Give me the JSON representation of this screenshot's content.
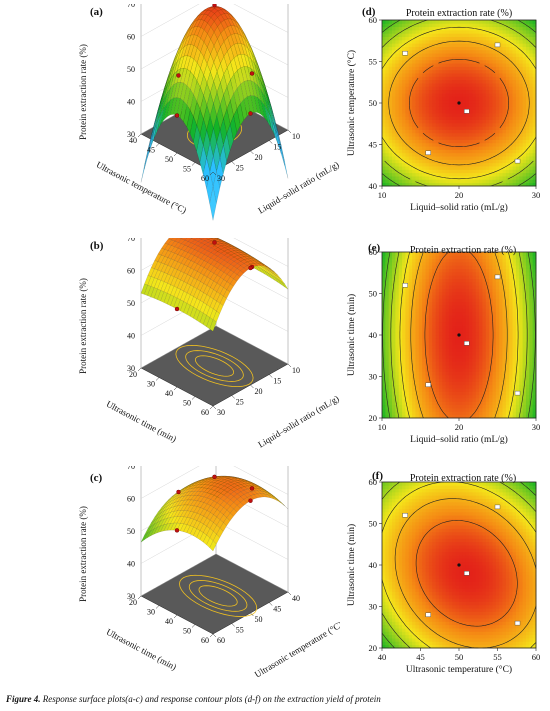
{
  "caption": {
    "figure_label": "Figure 4.",
    "text": "Response surface plots(a-c) and response contour plots (d-f) on the extraction yield of protein"
  },
  "colors": {
    "high": "#e32219",
    "mid": "#f5e61a",
    "low": "#12b324",
    "base": "#595959"
  },
  "chart_data": [
    {
      "id": "a",
      "type": "surface3d",
      "label": "(a)",
      "zlabel": "Protein extraction rate (%)",
      "zticks": [
        "30",
        "40",
        "50",
        "60",
        "70"
      ],
      "xlabel": "Liquid–solid ratio (mL/g)",
      "xticks": [
        "10",
        "15",
        "20",
        "25",
        "30"
      ],
      "ylabel": "Ultrasonic temperature (°C)",
      "yticks": [
        "40",
        "45",
        "50",
        "55",
        "60"
      ]
    },
    {
      "id": "b",
      "type": "surface3d",
      "label": "(b)",
      "zlabel": "Protein extraction rate (%)",
      "zticks": [
        "30",
        "40",
        "50",
        "60",
        "70"
      ],
      "xlabel": "Liquid–solid ratio (mL/g)",
      "xticks": [
        "10",
        "15",
        "20",
        "25",
        "30"
      ],
      "ylabel": "Ultrasonic time (min)",
      "yticks": [
        "20",
        "30",
        "40",
        "50",
        "60"
      ]
    },
    {
      "id": "c",
      "type": "surface3d",
      "label": "(c)",
      "zlabel": "Protein extraction rate (%)",
      "zticks": [
        "30",
        "40",
        "50",
        "60",
        "70"
      ],
      "xlabel": "Ultrasonic temperature (°C)",
      "xticks": [
        "40",
        "45",
        "50",
        "55",
        "60"
      ],
      "ylabel": "Ultrasonic time (min)",
      "yticks": [
        "20",
        "30",
        "40",
        "50",
        "60"
      ]
    },
    {
      "id": "d",
      "type": "contour",
      "label": "(d)",
      "title": "Protein extraction rate (%)",
      "xlabel": "Liquid–solid ratio (mL/g)",
      "xticks": [
        "10",
        "20",
        "30"
      ],
      "xlim": [
        10,
        30
      ],
      "ylabel": "Ultrasonic temperature (°C)",
      "yticks": [
        "40",
        "45",
        "50",
        "55",
        "60"
      ],
      "ylim": [
        40,
        60
      ],
      "center": [
        20,
        50
      ],
      "center_label": "50"
    },
    {
      "id": "e",
      "type": "contour",
      "label": "(e)",
      "title": "Protein extraction rate (%)",
      "xlabel": "Liquid–solid ratio (mL/g)",
      "xticks": [
        "10",
        "20",
        "30"
      ],
      "xlim": [
        10,
        30
      ],
      "ylabel": "Ultrasonic time (min)",
      "yticks": [
        "20",
        "30",
        "40",
        "50",
        "60"
      ],
      "ylim": [
        20,
        60
      ],
      "center": [
        20,
        40
      ]
    },
    {
      "id": "f",
      "type": "contour",
      "label": "(f)",
      "title": "Protein extraction rate (%)",
      "xlabel": "Ultrasonic temperature (°C)",
      "xticks": [
        "40",
        "45",
        "50",
        "55",
        "60"
      ],
      "xlim": [
        40,
        60
      ],
      "ylabel": "Ultrasonic time (min)",
      "yticks": [
        "20",
        "30",
        "40",
        "50",
        "60"
      ],
      "ylim": [
        20,
        60
      ],
      "center": [
        50,
        40
      ]
    }
  ]
}
